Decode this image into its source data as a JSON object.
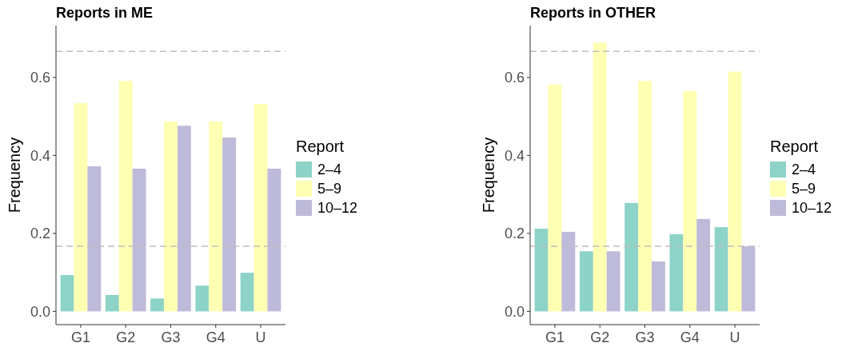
{
  "chart_data": [
    {
      "type": "bar",
      "title": "Reports in ME",
      "ylabel": "Frequency",
      "legend_title": "Report",
      "categories": [
        "G1",
        "G2",
        "G3",
        "G4",
        "U"
      ],
      "series": [
        {
          "name": "2–4",
          "color": "#8dd3c7",
          "values": [
            0.093,
            0.042,
            0.033,
            0.066,
            0.099
          ]
        },
        {
          "name": "5–9",
          "color": "#ffffb3",
          "values": [
            0.534,
            0.591,
            0.487,
            0.487,
            0.532
          ]
        },
        {
          "name": "10–12",
          "color": "#bebada",
          "values": [
            0.372,
            0.366,
            0.476,
            0.446,
            0.366
          ]
        }
      ],
      "ylim": [
        -0.034,
        0.733
      ],
      "yticks": [
        {
          "value": 0,
          "label": "0.0"
        },
        {
          "value": 0.2,
          "label": "0.2"
        },
        {
          "value": 0.4,
          "label": "0.4"
        },
        {
          "value": 0.6,
          "label": "0.6"
        }
      ],
      "ref_lines": [
        {
          "axis": "y",
          "value": 0.667,
          "color": "#bfbfbf",
          "line_style": "dashed"
        },
        {
          "axis": "y",
          "value": 0.167,
          "color": "#bfbfbf",
          "line_style": "dashed"
        }
      ],
      "grid": false,
      "legend": "right"
    },
    {
      "type": "bar",
      "title": "Reports in OTHER",
      "ylabel": "Frequency",
      "legend_title": "Report",
      "categories": [
        "G1",
        "G2",
        "G3",
        "G4",
        "U"
      ],
      "series": [
        {
          "name": "2–4",
          "color": "#8dd3c7",
          "values": [
            0.212,
            0.154,
            0.278,
            0.198,
            0.216
          ]
        },
        {
          "name": "5–9",
          "color": "#ffffb3",
          "values": [
            0.582,
            0.689,
            0.591,
            0.565,
            0.615
          ]
        },
        {
          "name": "10–12",
          "color": "#bebada",
          "values": [
            0.204,
            0.154,
            0.128,
            0.237,
            0.167
          ]
        }
      ],
      "ylim": [
        -0.034,
        0.733
      ],
      "yticks": [
        {
          "value": 0,
          "label": "0.0"
        },
        {
          "value": 0.2,
          "label": "0.2"
        },
        {
          "value": 0.4,
          "label": "0.4"
        },
        {
          "value": 0.6,
          "label": "0.6"
        }
      ],
      "ref_lines": [
        {
          "axis": "y",
          "value": 0.667,
          "color": "#bfbfbf",
          "line_style": "dashed"
        },
        {
          "axis": "y",
          "value": 0.167,
          "color": "#bfbfbf",
          "line_style": "dashed"
        }
      ],
      "grid": false,
      "legend": "right"
    }
  ]
}
